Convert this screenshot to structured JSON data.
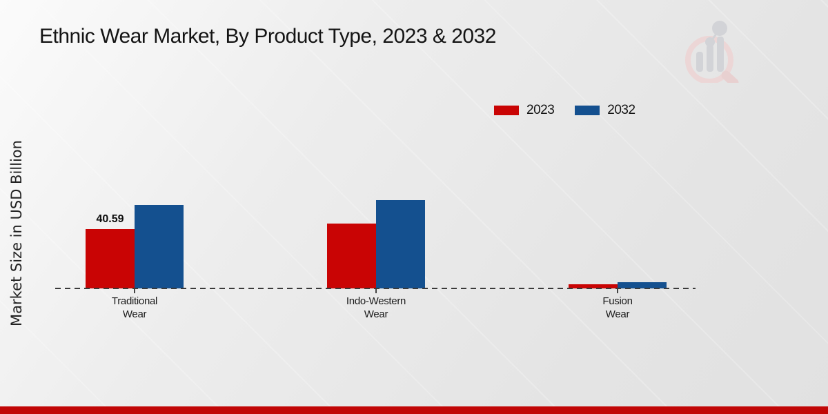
{
  "chart_data": {
    "type": "bar",
    "title": "Ethnic Wear Market, By Product Type, 2023 & 2032",
    "ylabel": "Market Size in USD Billion",
    "xlabel": "",
    "categories": [
      "Traditional Wear",
      "Indo-Western Wear",
      "Fusion Wear"
    ],
    "series": [
      {
        "name": "2023",
        "color": "#c90404",
        "values": [
          40.59,
          44.3,
          2.6
        ],
        "data_labels": [
          "40.59",
          "",
          ""
        ]
      },
      {
        "name": "2032",
        "color": "#14508f",
        "values": [
          57.1,
          60.4,
          4.2
        ],
        "data_labels": [
          "",
          "",
          ""
        ]
      }
    ],
    "ylim": [
      0,
      65
    ],
    "grid": false,
    "legend_position": "top-right",
    "baseline_style": "dashed",
    "y_axis_ticks_visible": false
  },
  "branding": {
    "watermark_icon": "magnifier-bar-chart-logo"
  },
  "colors": {
    "series_2023": "#c90404",
    "series_2032": "#14508f",
    "bottom_band": "#c10606",
    "baseline": "#3a3a3a"
  }
}
